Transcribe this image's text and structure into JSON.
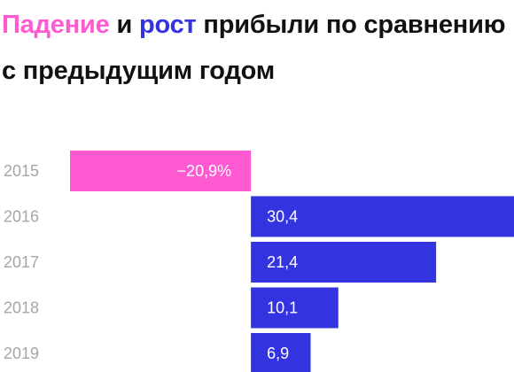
{
  "title": {
    "fall": "Падение",
    "and": " и ",
    "rise": "рост",
    "rest": " прибыли по сравнению с предыдущим годом"
  },
  "colors": {
    "fall": "#ff5ad2",
    "rise": "#3333e0",
    "year_text": "#a6a6a6",
    "value_text": "#ffffff"
  },
  "chart_data": {
    "type": "bar",
    "orientation": "horizontal",
    "title": "Падение и рост прибыли по сравнению с предыдущим годом",
    "categories": [
      "2015",
      "2016",
      "2017",
      "2018",
      "2019"
    ],
    "values": [
      -20.9,
      30.4,
      21.4,
      10.1,
      6.9
    ],
    "value_labels": [
      "−20,9%",
      "30,4",
      "21,4",
      "10,1",
      "6,9"
    ],
    "xlim": [
      -20.9,
      30.4
    ],
    "grid": false,
    "legend": "none"
  }
}
